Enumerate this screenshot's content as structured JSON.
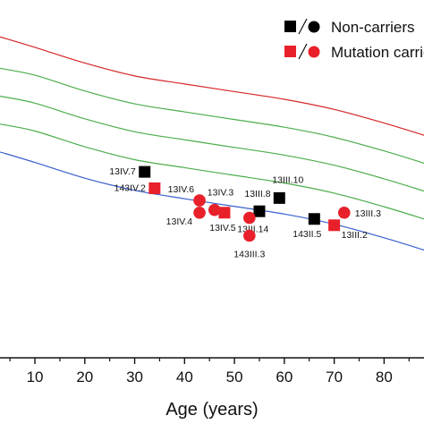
{
  "chart_data": {
    "type": "scatter",
    "title": "",
    "xlabel": "Age (years)",
    "ylabel": "",
    "xlim": [
      3,
      88
    ],
    "xticks": [
      10,
      20,
      30,
      40,
      50,
      60,
      70,
      80
    ],
    "ylim": [
      0,
      1
    ],
    "grid": false,
    "legend": {
      "placement": "top-right",
      "entries": [
        {
          "label": "Non-carriers",
          "markers": [
            "square",
            "circle"
          ],
          "color": "#000000"
        },
        {
          "label": "Mutation carriers",
          "markers": [
            "square",
            "circle"
          ],
          "color": "#e8202a"
        }
      ]
    },
    "reference_curves": [
      {
        "color": "#d62728",
        "x": [
          3,
          10,
          20,
          30,
          40,
          50,
          60,
          70,
          80,
          88
        ],
        "y": [
          0.92,
          0.89,
          0.845,
          0.808,
          0.785,
          0.763,
          0.741,
          0.712,
          0.673,
          0.638
        ]
      },
      {
        "color": "#4cae4c",
        "x": [
          3,
          10,
          20,
          30,
          40,
          50,
          60,
          70,
          80,
          88
        ],
        "y": [
          0.83,
          0.81,
          0.765,
          0.728,
          0.705,
          0.683,
          0.661,
          0.632,
          0.593,
          0.558
        ]
      },
      {
        "color": "#4cae4c",
        "x": [
          3,
          10,
          20,
          30,
          40,
          50,
          60,
          70,
          80,
          88
        ],
        "y": [
          0.75,
          0.73,
          0.685,
          0.648,
          0.625,
          0.603,
          0.581,
          0.552,
          0.513,
          0.478
        ]
      },
      {
        "color": "#4cae4c",
        "x": [
          3,
          10,
          20,
          30,
          40,
          50,
          60,
          70,
          80,
          88
        ],
        "y": [
          0.67,
          0.65,
          0.605,
          0.568,
          0.545,
          0.523,
          0.501,
          0.472,
          0.433,
          0.398
        ]
      },
      {
        "color": "#3a5fcd",
        "x": [
          3,
          10,
          20,
          30,
          40,
          50,
          60,
          70,
          80,
          88
        ],
        "y": [
          0.59,
          0.56,
          0.515,
          0.48,
          0.456,
          0.434,
          0.412,
          0.383,
          0.344,
          0.309
        ]
      }
    ],
    "series": [
      {
        "name": "Non-carriers",
        "color": "#000000",
        "points": [
          {
            "label": "13IV.7",
            "x": 32,
            "y": 0.533,
            "marker": "square"
          },
          {
            "label": "13III.8",
            "x": 55,
            "y": 0.42,
            "marker": "square"
          },
          {
            "label": "13III.10",
            "x": 59,
            "y": 0.458,
            "marker": "square"
          },
          {
            "label": "143II.5",
            "x": 66,
            "y": 0.398,
            "marker": "square"
          }
        ]
      },
      {
        "name": "Mutation carriers",
        "color": "#e8202a",
        "points": [
          {
            "label": "143IV.2",
            "x": 34,
            "y": 0.486,
            "marker": "square"
          },
          {
            "label": "13IV.6",
            "x": 43,
            "y": 0.451,
            "marker": "circle"
          },
          {
            "label": "13IV.4",
            "x": 43,
            "y": 0.416,
            "marker": "circle"
          },
          {
            "label": "13IV.3",
            "x": 46,
            "y": 0.424,
            "marker": "circle"
          },
          {
            "label": "13IV.5",
            "x": 48,
            "y": 0.416,
            "marker": "square"
          },
          {
            "label": "13III.14",
            "x": 53,
            "y": 0.401,
            "marker": "circle"
          },
          {
            "label": "143III.3",
            "x": 53,
            "y": 0.35,
            "marker": "circle"
          },
          {
            "label": "13III.2",
            "x": 70,
            "y": 0.38,
            "marker": "square"
          },
          {
            "label": "13III.3",
            "x": 72,
            "y": 0.416,
            "marker": "circle"
          }
        ]
      }
    ]
  }
}
